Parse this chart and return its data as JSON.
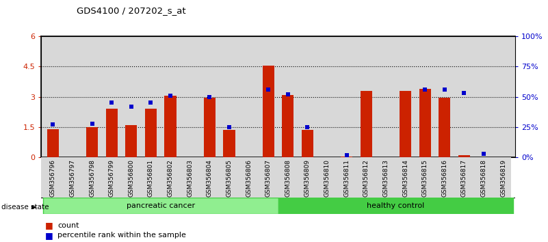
{
  "title": "GDS4100 / 207202_s_at",
  "samples": [
    "GSM356796",
    "GSM356797",
    "GSM356798",
    "GSM356799",
    "GSM356800",
    "GSM356801",
    "GSM356802",
    "GSM356803",
    "GSM356804",
    "GSM356805",
    "GSM356806",
    "GSM356807",
    "GSM356808",
    "GSM356809",
    "GSM356810",
    "GSM356811",
    "GSM356812",
    "GSM356813",
    "GSM356814",
    "GSM356815",
    "GSM356816",
    "GSM356817",
    "GSM356818",
    "GSM356819"
  ],
  "red_values": [
    1.4,
    0.0,
    1.5,
    2.4,
    1.6,
    2.4,
    3.05,
    0.0,
    2.95,
    1.35,
    0.0,
    4.55,
    3.1,
    1.35,
    0.0,
    0.05,
    3.3,
    0.0,
    3.3,
    3.4,
    2.95,
    0.1,
    0.0,
    0.0
  ],
  "blue_pct": [
    27,
    0,
    28,
    45,
    42,
    45,
    51,
    0,
    50,
    25,
    0,
    56,
    52,
    25,
    0,
    2,
    0,
    0,
    0,
    56,
    56,
    53,
    3,
    0
  ],
  "ylim_left": [
    0,
    6
  ],
  "ylim_right": [
    0,
    100
  ],
  "yticks_left": [
    0,
    1.5,
    3.0,
    4.5,
    6
  ],
  "ytick_labels_left": [
    "0",
    "1.5",
    "3",
    "4.5",
    "6"
  ],
  "yticks_right": [
    0,
    25,
    50,
    75,
    100
  ],
  "ytick_labels_right": [
    "0%",
    "25%",
    "50%",
    "75%",
    "100%"
  ],
  "bar_color": "#cc2200",
  "dot_color": "#0000cc",
  "pancreatic_label": "pancreatic cancer",
  "healthy_label": "healthy control",
  "disease_state_label": "disease state",
  "legend_count": "count",
  "legend_percentile": "percentile rank within the sample",
  "panel_bg": "#d8d8d8",
  "green_light": "#90EE90",
  "green_dark": "#22aa22",
  "green_mid": "#44cc44"
}
